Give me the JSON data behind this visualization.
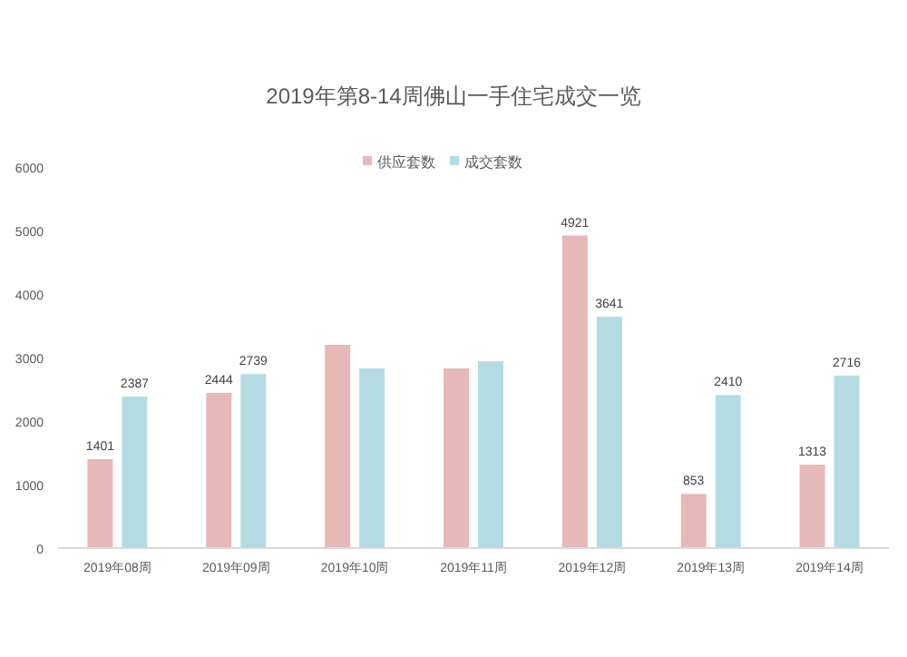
{
  "chart_data": {
    "type": "bar",
    "title": "2019年第8-14周佛山一手住宅成交一览",
    "categories": [
      "2019年08周",
      "2019年09周",
      "2019年10周",
      "2019年11周",
      "2019年12周",
      "2019年13周",
      "2019年14周"
    ],
    "series": [
      {
        "name": "供应套数",
        "color": "#e6b8b8",
        "values": [
          1401,
          2444,
          3200,
          2830,
          4921,
          853,
          1313
        ],
        "value_labels": [
          "1401",
          "2444",
          null,
          null,
          "4921",
          "853",
          "1313"
        ]
      },
      {
        "name": "成交套数",
        "color": "#b4dbe4",
        "values": [
          2387,
          2739,
          2830,
          2940,
          3641,
          2410,
          2716
        ],
        "value_labels": [
          "2387",
          "2739",
          null,
          null,
          "3641",
          "2410",
          "2716"
        ]
      }
    ],
    "ylim": [
      0,
      6000
    ],
    "yticks": [
      0,
      1000,
      2000,
      3000,
      4000,
      5000,
      6000
    ],
    "grid": false,
    "legend": "top"
  }
}
